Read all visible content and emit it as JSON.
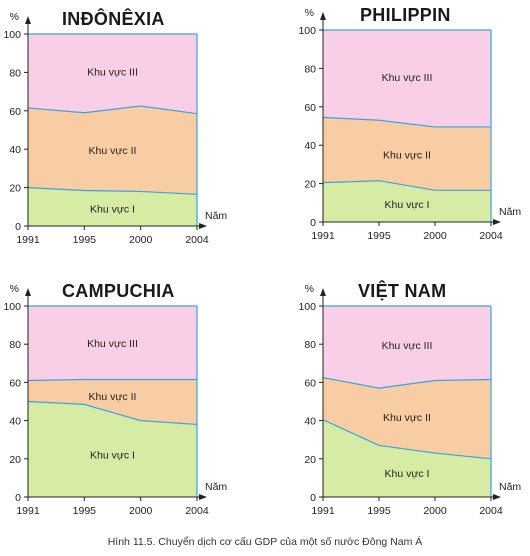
{
  "caption": "Hình 11.5. Chuyển dịch cơ cấu GDP của một số nước Đông Nam Á",
  "colors": {
    "sector_I": "#d6eba4",
    "sector_II": "#f9cda3",
    "sector_III": "#f8cfe7",
    "boundary": "#3aa3dc",
    "axis": "#222222"
  },
  "chart_data": [
    {
      "type": "area",
      "title": "INĐÔNÊXIA",
      "x": [
        "1991",
        "1995",
        "2000",
        "2004"
      ],
      "xlabel": "Năm",
      "ylabel": "%",
      "ylim": [
        0,
        100
      ],
      "yticks": [
        "0",
        "20",
        "40",
        "60",
        "80",
        "100"
      ],
      "series": [
        {
          "name": "Khu vực I",
          "values": [
            20,
            18.5,
            18,
            16.5
          ]
        },
        {
          "name": "Khu vực II",
          "values": [
            41.5,
            40.5,
            44.5,
            42
          ]
        },
        {
          "name": "Khu vực III",
          "values": [
            38.5,
            41,
            37.5,
            41.5
          ]
        }
      ]
    },
    {
      "type": "area",
      "title": "PHILIPPIN",
      "x": [
        "1991",
        "1995",
        "2000",
        "2004"
      ],
      "xlabel": "Năm",
      "ylabel": "%",
      "ylim": [
        0,
        100
      ],
      "yticks": [
        "0",
        "20",
        "40",
        "60",
        "80",
        "100"
      ],
      "series": [
        {
          "name": "Khu vực I",
          "values": [
            20.5,
            21.5,
            16.5,
            16.5
          ]
        },
        {
          "name": "Khu vực II",
          "values": [
            34,
            31.5,
            33,
            33
          ]
        },
        {
          "name": "Khu vực III",
          "values": [
            45.5,
            47,
            50.5,
            50.5
          ]
        }
      ]
    },
    {
      "type": "area",
      "title": "CAMPUCHIA",
      "x": [
        "1991",
        "1995",
        "2000",
        "2004"
      ],
      "xlabel": "Năm",
      "ylabel": "%",
      "ylim": [
        0,
        100
      ],
      "yticks": [
        "0",
        "20",
        "40",
        "60",
        "80",
        "100"
      ],
      "series": [
        {
          "name": "Khu vực I",
          "values": [
            50,
            48.5,
            40,
            38
          ]
        },
        {
          "name": "Khu vực II",
          "values": [
            11,
            13,
            21.5,
            23.5
          ]
        },
        {
          "name": "Khu vực III",
          "values": [
            39,
            38.5,
            38.5,
            38.5
          ]
        }
      ]
    },
    {
      "type": "area",
      "title": "VIỆT NAM",
      "x": [
        "1991",
        "1995",
        "2000",
        "2004"
      ],
      "xlabel": "Năm",
      "ylabel": "%",
      "ylim": [
        0,
        100
      ],
      "yticks": [
        "0",
        "20",
        "40",
        "60",
        "80",
        "100"
      ],
      "series": [
        {
          "name": "Khu vực I",
          "values": [
            40.5,
            27,
            23,
            20
          ]
        },
        {
          "name": "Khu vực II",
          "values": [
            22,
            30,
            38,
            41.5
          ]
        },
        {
          "name": "Khu vực III",
          "values": [
            37.5,
            43,
            39,
            38.5
          ]
        }
      ]
    }
  ]
}
